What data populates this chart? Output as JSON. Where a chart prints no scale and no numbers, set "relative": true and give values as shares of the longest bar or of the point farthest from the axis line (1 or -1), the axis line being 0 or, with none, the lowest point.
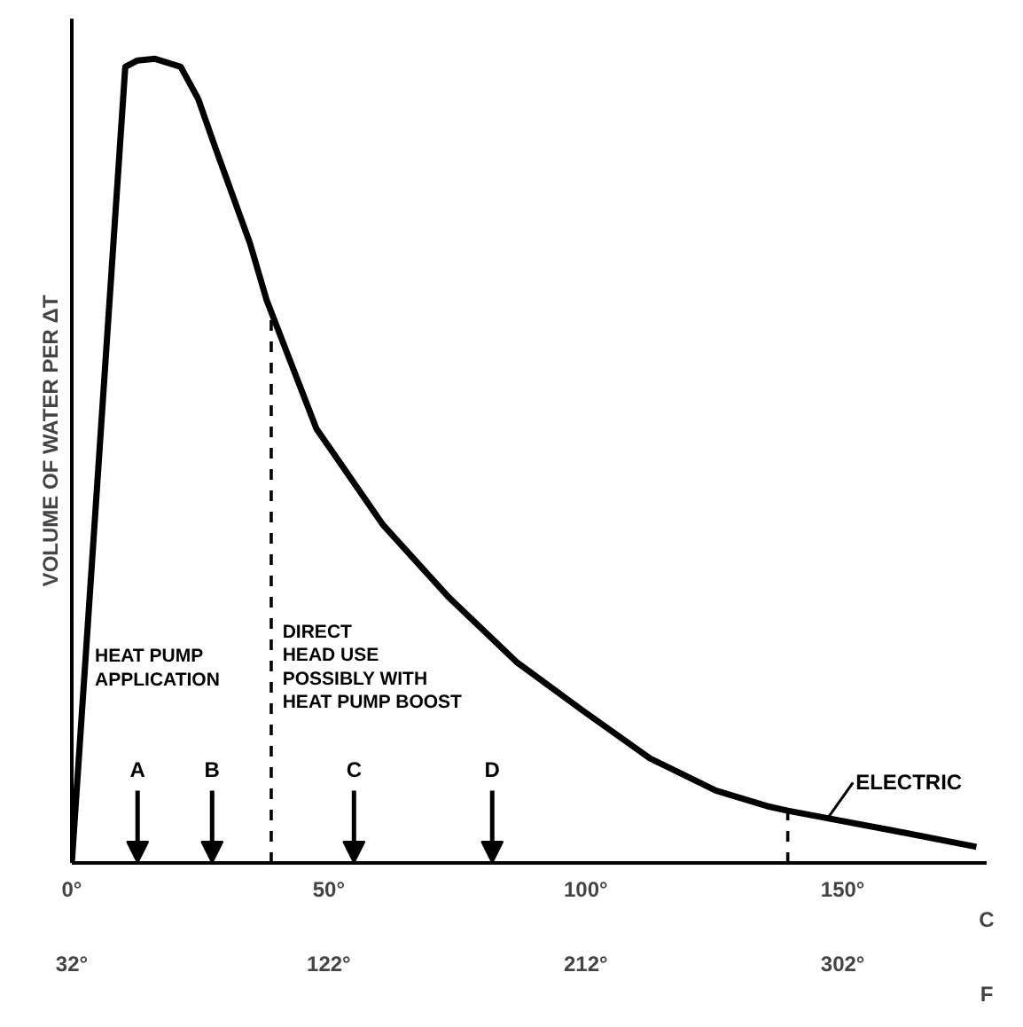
{
  "chart_data": {
    "type": "line",
    "relative": true,
    "ylabel": "VOLUME OF WATER PER ΔT",
    "xlim": [
      0,
      178
    ],
    "xlabel": "C",
    "xticks": [
      {
        "value": 0,
        "label": "0°"
      },
      {
        "value": 50,
        "label": "50°"
      },
      {
        "value": 100,
        "label": "100°"
      },
      {
        "value": 150,
        "label": "150°"
      }
    ],
    "x2lim": [
      32,
      352.4
    ],
    "x2label": "F",
    "x2ticks": [
      {
        "value": 32,
        "label": "32°"
      },
      {
        "value": 122,
        "label": "122°"
      },
      {
        "value": 212,
        "label": "212°"
      },
      {
        "value": 302,
        "label": "302°"
      }
    ],
    "series": [
      {
        "color": "#000000",
        "x": [
          0,
          10.4,
          12.8,
          16.2,
          21.2,
          24.6,
          27.9,
          34.7,
          37.9,
          47.6,
          60.6,
          73.4,
          86.5,
          99.3,
          112.5,
          125.3,
          135.7,
          139.3,
          160,
          176
        ],
        "values": [
          0,
          0.99,
          0.998,
          1,
          0.99,
          0.95,
          0.89,
          0.77,
          0.7,
          0.54,
          0.42,
          0.33,
          0.25,
          0.19,
          0.13,
          0.09,
          0.07,
          0.065,
          0.04,
          0.02
        ]
      },
      {
        "type": "line",
        "line_style": "dashed",
        "color": "#000000",
        "x": [
          38.8,
          38.8
        ],
        "values": [
          0,
          0.68
        ]
      },
      {
        "type": "line",
        "line_style": "dashed",
        "color": "#000000",
        "x": [
          139.3,
          139.3
        ],
        "values": [
          0,
          0.065
        ]
      }
    ],
    "annotations": [
      "A",
      "B",
      "C",
      "D",
      "HEAT PUMP\nAPPLICATION",
      "DIRECT\nHEAD USE\nPOSSIBLY WITH\nHEAT PUMP BOOST",
      {
        "text": "ELECTRIC",
        "x": 147,
        "y": 0.055
      }
    ],
    "grid": false,
    "line_style": "solid",
    "marker": "none"
  }
}
